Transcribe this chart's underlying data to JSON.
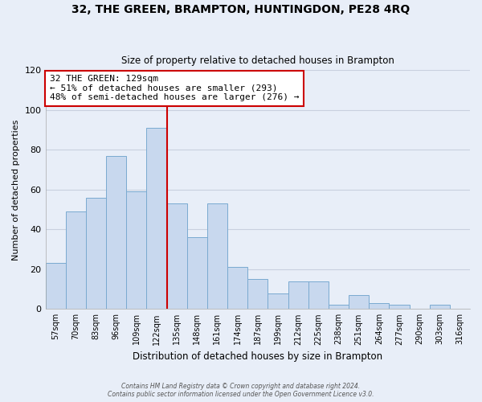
{
  "title": "32, THE GREEN, BRAMPTON, HUNTINGDON, PE28 4RQ",
  "subtitle": "Size of property relative to detached houses in Brampton",
  "xlabel": "Distribution of detached houses by size in Brampton",
  "ylabel": "Number of detached properties",
  "bar_color": "#c8d8ee",
  "bar_edge_color": "#7aaad0",
  "background_color": "#e8eef8",
  "grid_color": "#d0d8e8",
  "categories": [
    "57sqm",
    "70sqm",
    "83sqm",
    "96sqm",
    "109sqm",
    "122sqm",
    "135sqm",
    "148sqm",
    "161sqm",
    "174sqm",
    "187sqm",
    "199sqm",
    "212sqm",
    "225sqm",
    "238sqm",
    "251sqm",
    "264sqm",
    "277sqm",
    "290sqm",
    "303sqm",
    "316sqm"
  ],
  "values": [
    23,
    49,
    56,
    77,
    59,
    91,
    53,
    36,
    53,
    21,
    15,
    8,
    14,
    14,
    2,
    7,
    3,
    2,
    0,
    2,
    0
  ],
  "ylim": [
    0,
    120
  ],
  "yticks": [
    0,
    20,
    40,
    60,
    80,
    100,
    120
  ],
  "vline_index": 5.5,
  "vline_color": "#cc0000",
  "box_color": "#ffffff",
  "box_edge_color": "#cc0000",
  "marker_label": "32 THE GREEN: 129sqm",
  "annotation_line1": "← 51% of detached houses are smaller (293)",
  "annotation_line2": "48% of semi-detached houses are larger (276) →",
  "footer1": "Contains HM Land Registry data © Crown copyright and database right 2024.",
  "footer2": "Contains public sector information licensed under the Open Government Licence v3.0."
}
